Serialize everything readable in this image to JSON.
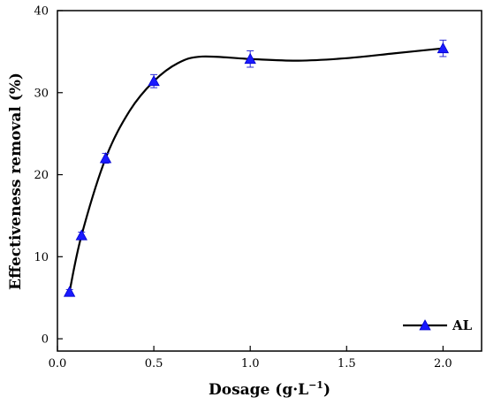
{
  "chart_data": {
    "type": "line",
    "xlabel": "Dosage (g·L",
    "xlabel_sup": "−1",
    "xlabel_close": ")",
    "ylabel": "Effectiveness removal (%)",
    "xlim": [
      0,
      2.2
    ],
    "ylim": [
      -1.5,
      40
    ],
    "xticks": [
      "0.0",
      "0.5",
      "1.0",
      "1.5",
      "2.0"
    ],
    "xtick_values": [
      0,
      0.5,
      1.0,
      1.5,
      2.0
    ],
    "yticks": [
      "0",
      "10",
      "20",
      "30",
      "40"
    ],
    "ytick_values": [
      0,
      10,
      20,
      30,
      40
    ],
    "grid": false,
    "legend_position": "bottom-right",
    "series": [
      {
        "name": "AL",
        "line_color": "#000000",
        "marker": "triangle",
        "marker_color": "#1a1aff",
        "x": [
          0.0625,
          0.125,
          0.25,
          0.5,
          1.0,
          2.0
        ],
        "y": [
          5.7,
          12.6,
          22.0,
          31.4,
          34.1,
          35.4
        ],
        "error": [
          0.3,
          0.4,
          0.6,
          0.8,
          1.0,
          1.0
        ],
        "smooth_curve_x": [
          0.0625,
          0.125,
          0.25,
          0.375,
          0.5,
          0.625,
          0.75,
          1.0,
          1.25,
          1.5,
          1.75,
          2.0
        ],
        "smooth_curve_y": [
          5.7,
          12.6,
          22.0,
          27.8,
          31.4,
          33.6,
          34.4,
          34.1,
          33.9,
          34.2,
          34.8,
          35.4
        ]
      }
    ]
  }
}
